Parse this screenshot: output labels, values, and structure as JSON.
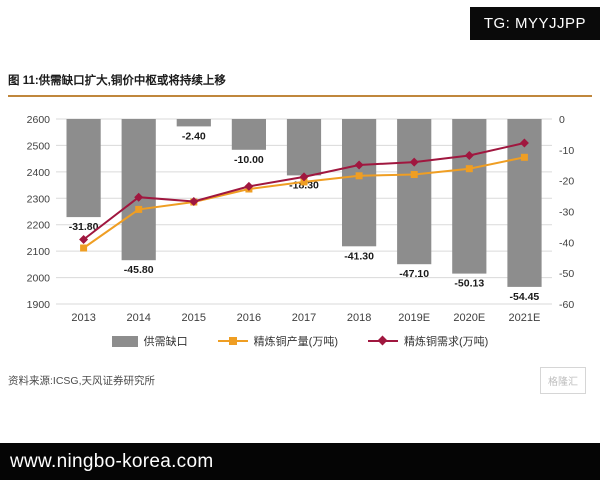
{
  "badge": {
    "text": "TG: MYYJJPP"
  },
  "figure": {
    "title": "图 11:供需缺口扩大,铜价中枢或将持续上移",
    "source": "资料来源:ICSG,天风证券研究所",
    "watermark": "格隆汇"
  },
  "footer": {
    "url": "www.ningbo-korea.com"
  },
  "chart_data": {
    "type": "bar",
    "subtype": "combo-bar-line-dual-axis",
    "title": "图 11:供需缺口扩大,铜价中枢或将持续上移",
    "categories": [
      "2013",
      "2014",
      "2015",
      "2016",
      "2017",
      "2018",
      "2019E",
      "2020E",
      "2021E"
    ],
    "bar_series": {
      "name": "供需缺口",
      "axis": "right",
      "color": "#8d8d8d",
      "values": [
        -31.8,
        -45.8,
        -2.4,
        -10.0,
        -18.3,
        -41.3,
        -47.1,
        -50.13,
        -54.45
      ]
    },
    "bar_labels": [
      "-31.80",
      "-45.80",
      "-2.40",
      "-10.00",
      "-18.30",
      "-41.30",
      "-47.10",
      "-50.13",
      "-54.45"
    ],
    "line_series": [
      {
        "name": "精炼铜产量(万吨)",
        "axis": "left",
        "color": "#ef9e23",
        "marker": "square",
        "values": [
          2112,
          2258,
          2286,
          2335,
          2362,
          2385,
          2390,
          2412,
          2455
        ]
      },
      {
        "name": "精炼铜需求(万吨)",
        "axis": "left",
        "color": "#a0173f",
        "marker": "diamond",
        "values": [
          2144,
          2304,
          2288,
          2345,
          2381,
          2426,
          2437,
          2462,
          2509
        ]
      }
    ],
    "left_axis": {
      "min": 1900,
      "max": 2600,
      "step": 100
    },
    "right_axis": {
      "min": -60,
      "max": 0,
      "step": 10
    },
    "grid": true,
    "legend_position": "bottom"
  }
}
